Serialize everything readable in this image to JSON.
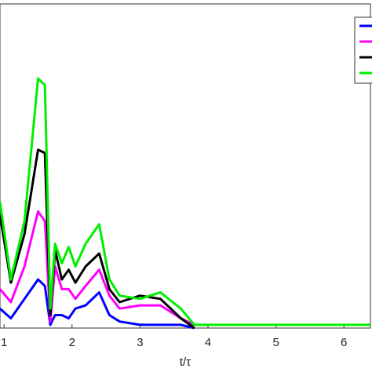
{
  "chart_data": {
    "type": "line",
    "xlabel": "t/τ",
    "x": [
      0.94,
      1.1,
      1.3,
      1.5,
      1.6,
      1.68,
      1.75,
      1.85,
      1.95,
      2.05,
      2.2,
      2.4,
      2.55,
      2.7,
      3.0,
      3.3,
      3.6,
      3.8,
      4.0,
      4.3,
      5.0,
      5.3,
      6.0,
      6.39
    ],
    "series": [
      {
        "color": "#0000ff",
        "values": [
          0.06,
          0.03,
          0.09,
          0.15,
          0.13,
          0.01,
          0.04,
          0.04,
          0.03,
          0.06,
          0.07,
          0.11,
          0.04,
          0.02,
          0.01,
          0.01,
          0.01,
          0.0,
          null,
          null,
          null,
          null,
          null,
          null
        ]
      },
      {
        "color": "#ff00ff",
        "values": [
          0.12,
          0.08,
          0.19,
          0.36,
          0.33,
          0.02,
          0.19,
          0.12,
          0.12,
          0.09,
          0.13,
          0.18,
          0.1,
          0.06,
          0.07,
          0.07,
          0.03,
          0.01,
          null,
          null,
          null,
          null,
          null,
          null
        ]
      },
      {
        "color": "#000000",
        "values": [
          0.35,
          0.14,
          0.29,
          0.55,
          0.54,
          0.04,
          0.24,
          0.15,
          0.18,
          0.14,
          0.19,
          0.23,
          0.12,
          0.08,
          0.1,
          0.09,
          0.03,
          0.0,
          null,
          null,
          null,
          null,
          null,
          null
        ]
      },
      {
        "color": "#00ee00",
        "values": [
          0.39,
          0.15,
          0.33,
          0.77,
          0.75,
          0.06,
          0.26,
          0.2,
          0.25,
          0.19,
          0.26,
          0.32,
          0.15,
          0.1,
          0.09,
          0.11,
          0.06,
          0.01,
          0.01,
          0.01,
          0.01,
          0.01,
          0.01,
          0.01
        ]
      }
    ],
    "xlim": [
      0.94,
      6.39
    ],
    "xticks": [
      1,
      2,
      3,
      4,
      5,
      6
    ],
    "ylim": [
      0,
      1
    ]
  }
}
